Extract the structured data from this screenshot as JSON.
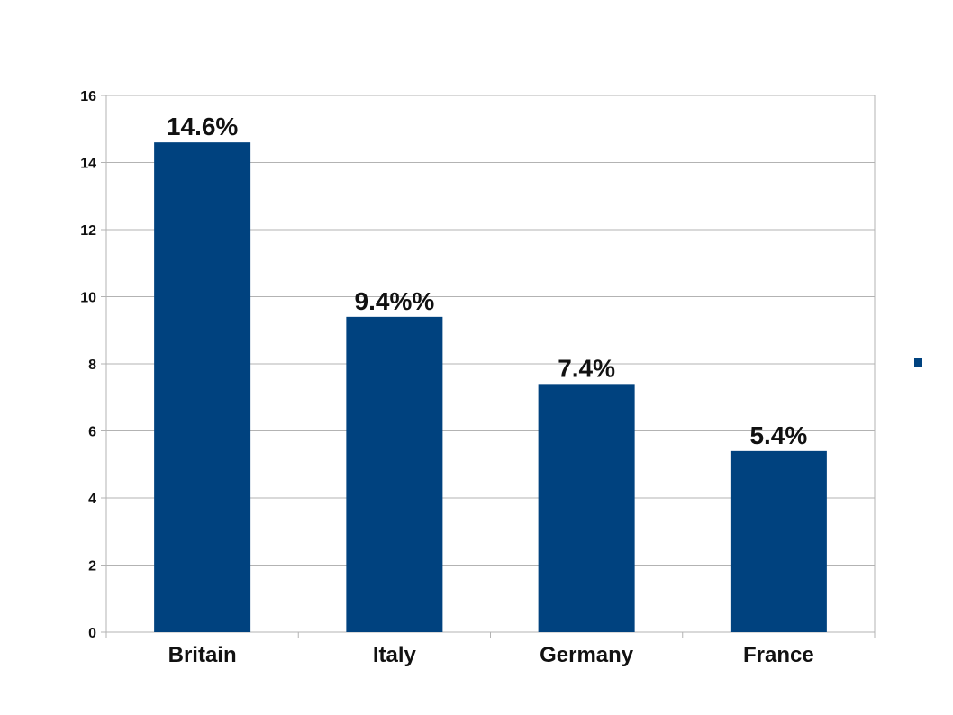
{
  "chart_data": {
    "type": "bar",
    "categories": [
      "Britain",
      "Italy",
      "Germany",
      "France"
    ],
    "values": [
      14.6,
      9.4,
      7.4,
      5.4
    ],
    "data_labels": [
      "14.6%",
      "9.4%%",
      "7.4%",
      "5.4%"
    ],
    "title": "",
    "xlabel": "",
    "ylabel": "",
    "ylim": [
      0,
      16
    ],
    "yticks": [
      0,
      2,
      4,
      6,
      8,
      10,
      12,
      14,
      16
    ],
    "grid": true,
    "legend": "right",
    "bar_color": "#00427F",
    "grid_color": "#b3b3b3"
  }
}
